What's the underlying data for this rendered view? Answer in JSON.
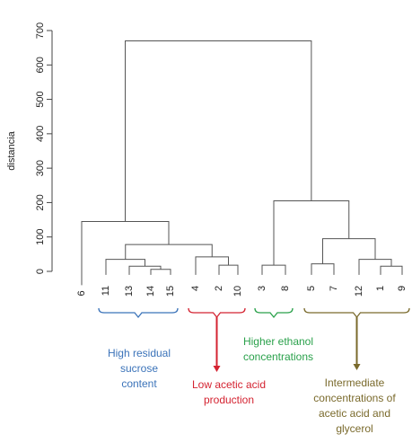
{
  "chart_data": {
    "type": "dendrogram",
    "title": "",
    "ylabel": "distancia",
    "xlabel": "",
    "ylim": [
      0,
      700
    ],
    "yticks": [
      0,
      100,
      200,
      300,
      400,
      500,
      600,
      700
    ],
    "leaves": [
      "6",
      "11",
      "13",
      "14",
      "15",
      "4",
      "2",
      "10",
      "3",
      "8",
      "5",
      "7",
      "12",
      "1",
      "9"
    ],
    "merges": [
      {
        "left": "14",
        "right": "15",
        "height": 6
      },
      {
        "left": "13",
        "right": "14-15",
        "height": 15
      },
      {
        "left": "11",
        "right": "13-14-15",
        "height": 35
      },
      {
        "left": "2",
        "right": "10",
        "height": 18
      },
      {
        "left": "4",
        "right": "2-10",
        "height": 42
      },
      {
        "left": "11-13-14-15",
        "right": "4-2-10",
        "height": 78
      },
      {
        "left": "6",
        "right": "11-13-14-15-4-2-10",
        "height": 145
      },
      {
        "left": "3",
        "right": "8",
        "height": 18
      },
      {
        "left": "5",
        "right": "7",
        "height": 22
      },
      {
        "left": "1",
        "right": "9",
        "height": 15
      },
      {
        "left": "12",
        "right": "1-9",
        "height": 35
      },
      {
        "left": "5-7",
        "right": "12-1-9",
        "height": 95
      },
      {
        "left": "3-8",
        "right": "5-7-12-1-9",
        "height": 205
      },
      {
        "left": "all-left",
        "right": "all-right",
        "height": 670
      }
    ]
  },
  "groups": [
    {
      "leaves": [
        "11",
        "13",
        "14",
        "15"
      ],
      "label": "High residual\nsucrose\ncontent",
      "color": "#3b73b9"
    },
    {
      "leaves": [
        "4",
        "2",
        "10"
      ],
      "label": "Low acetic acid\nproduction",
      "color": "#d42331"
    },
    {
      "leaves": [
        "3",
        "8"
      ],
      "label": "Higher ethanol\nconcentrations",
      "color": "#2aa14b"
    },
    {
      "leaves": [
        "5",
        "7",
        "12",
        "1",
        "9"
      ],
      "label": "Intermediate\nconcentrations of\nacetic acid and\nglycerol",
      "color": "#7a6a2c"
    }
  ]
}
